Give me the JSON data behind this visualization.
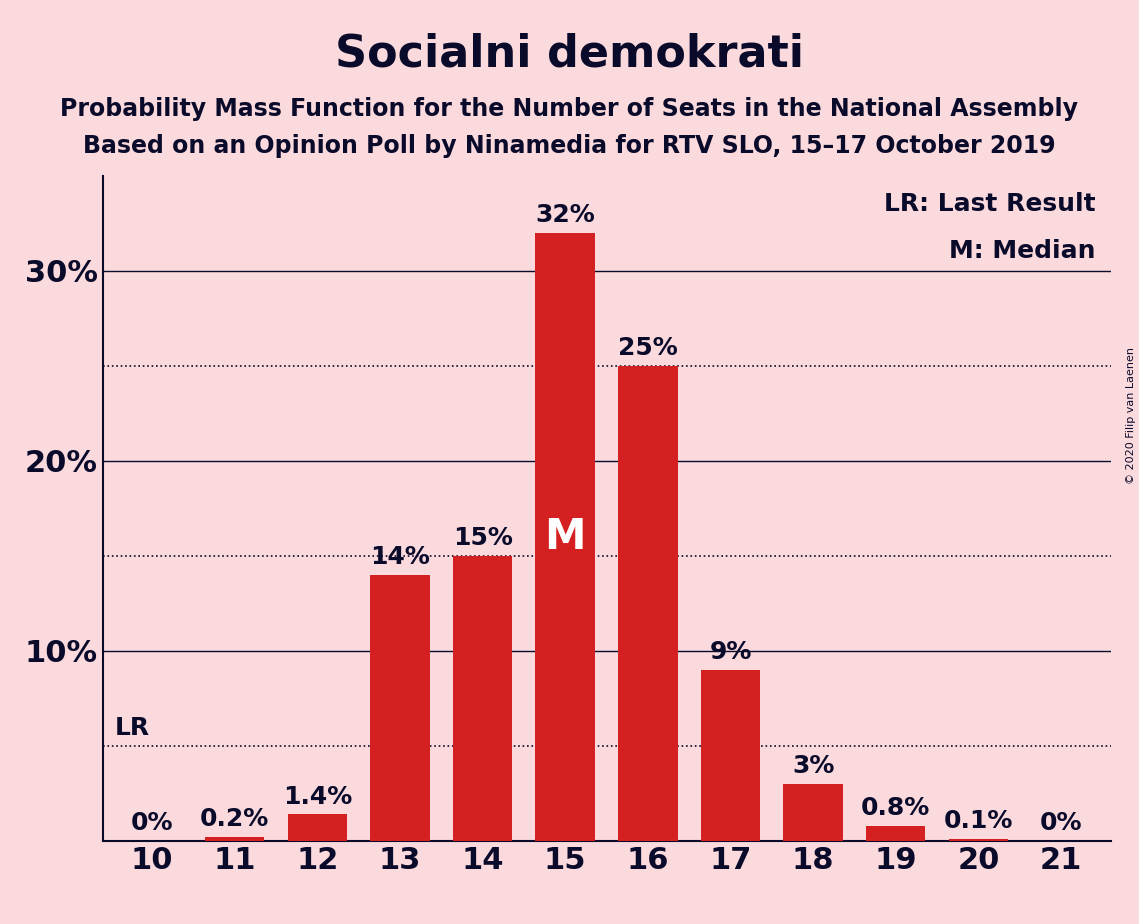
{
  "title": "Socialni demokrati",
  "subtitle1": "Probability Mass Function for the Number of Seats in the National Assembly",
  "subtitle2": "Based on an Opinion Poll by Ninamedia for RTV SLO, 15–17 October 2019",
  "copyright": "© 2020 Filip van Laenen",
  "categories": [
    10,
    11,
    12,
    13,
    14,
    15,
    16,
    17,
    18,
    19,
    20,
    21
  ],
  "values": [
    0.0,
    0.2,
    1.4,
    14.0,
    15.0,
    32.0,
    25.0,
    9.0,
    3.0,
    0.8,
    0.1,
    0.0
  ],
  "bar_labels": [
    "0%",
    "0.2%",
    "1.4%",
    "14%",
    "15%",
    "32%",
    "25%",
    "9%",
    "3%",
    "0.8%",
    "0.1%",
    "0%"
  ],
  "bar_color": "#D42020",
  "background_color": "#FADADD",
  "label_color": "#0A0A2A",
  "white_color": "#FFFFFF",
  "ylim": [
    0,
    35
  ],
  "yticks": [
    0,
    10,
    20,
    30
  ],
  "ytick_labels": [
    "",
    "10%",
    "20%",
    "30%"
  ],
  "solid_lines": [
    10,
    20,
    30
  ],
  "dotted_lines": [
    5.0,
    15.0,
    25.0
  ],
  "lr_value": 5.0,
  "median_seat": 15,
  "title_fontsize": 32,
  "subtitle_fontsize": 17,
  "axis_tick_fontsize": 22,
  "bar_label_fontsize": 18,
  "legend_fontsize": 18,
  "copyright_fontsize": 8
}
